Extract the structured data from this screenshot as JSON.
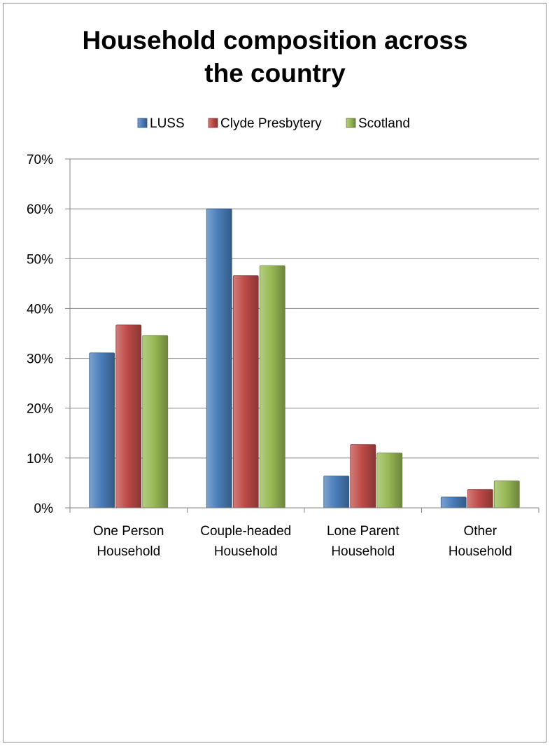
{
  "chart_data": {
    "type": "bar",
    "title": "Household composition across the country",
    "title_lines": [
      "Household composition across",
      "the country"
    ],
    "categories": [
      "One Person Household",
      "Couple-headed Household",
      "Lone Parent Household",
      "Other Household"
    ],
    "category_lines": [
      [
        "One Person",
        "Household"
      ],
      [
        "Couple-headed",
        "Household"
      ],
      [
        "Lone Parent",
        "Household"
      ],
      [
        "Other",
        "Household"
      ]
    ],
    "series": [
      {
        "name": "LUSS",
        "color": "#4a7ebb",
        "values": [
          31.1,
          60.0,
          6.4,
          2.2
        ]
      },
      {
        "name": "Clyde Presbytery",
        "color": "#be4b48",
        "values": [
          36.7,
          46.6,
          12.7,
          3.7
        ]
      },
      {
        "name": "Scotland",
        "color": "#98b954",
        "values": [
          34.6,
          48.6,
          11.0,
          5.4
        ]
      }
    ],
    "y_ticks": [
      "0%",
      "10%",
      "20%",
      "30%",
      "40%",
      "50%",
      "60%",
      "70%"
    ],
    "ylim": [
      0,
      70
    ],
    "y_unit": "%",
    "grid": true,
    "legend_position": "top"
  }
}
